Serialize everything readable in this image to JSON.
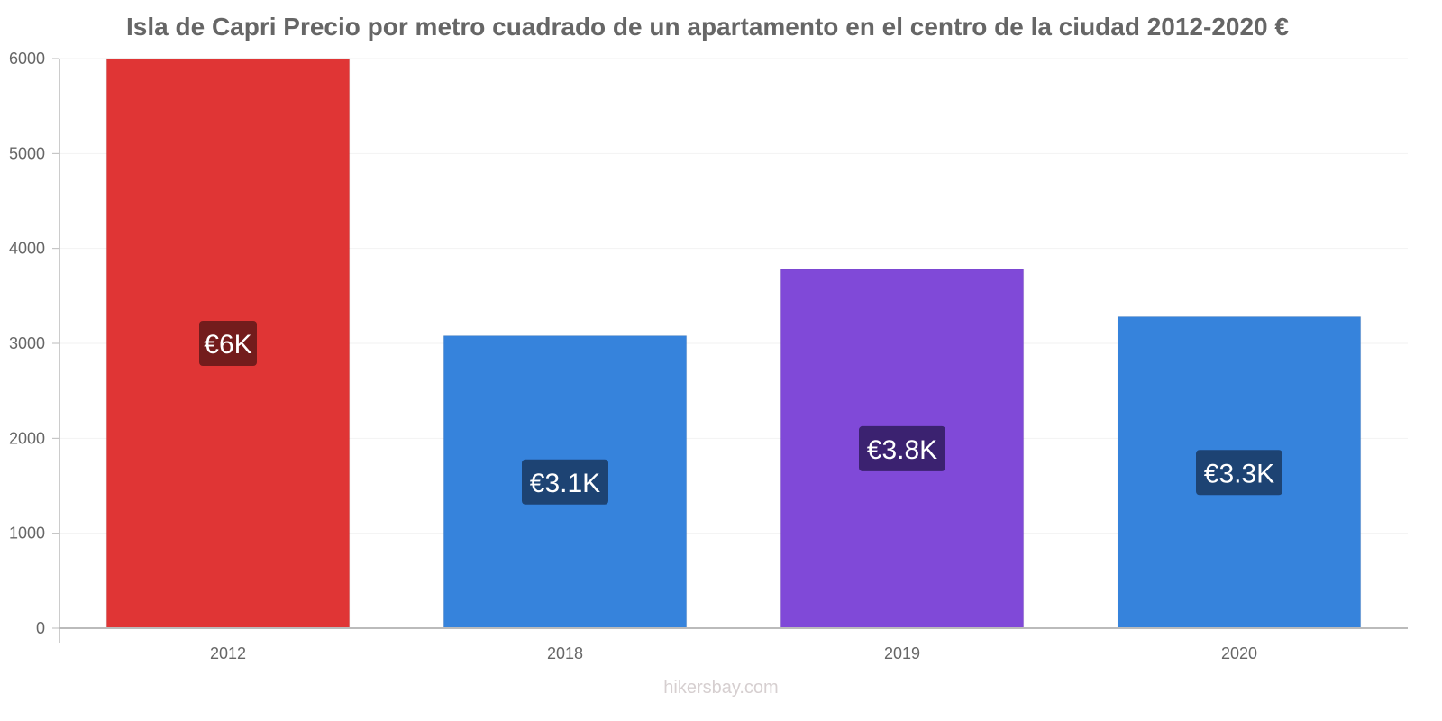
{
  "chart_data": {
    "type": "bar",
    "title": "Isla de Capri Precio por metro cuadrado de un apartamento en el centro de la ciudad 2012-2020 €",
    "xlabel": "",
    "ylabel": "",
    "categories": [
      "2012",
      "2018",
      "2019",
      "2020"
    ],
    "values": [
      6000,
      3080,
      3780,
      3280
    ],
    "data_labels": [
      "€6K",
      "€3.1K",
      "€3.8K",
      "€3.3K"
    ],
    "bar_colors": [
      "#e03535",
      "#3683dc",
      "#8049d8",
      "#3683dc"
    ],
    "label_bg_colors": [
      "#731c1c",
      "#1d4373",
      "#3b2270",
      "#1d4373"
    ],
    "ylim": [
      0,
      6000
    ],
    "yticks": [
      0,
      1000,
      2000,
      3000,
      4000,
      5000,
      6000
    ],
    "ytick_labels": [
      "0",
      "1000",
      "2000",
      "3000",
      "4000",
      "5000",
      "6000"
    ],
    "grid": true,
    "legend": "none"
  },
  "watermark": "hikersbay.com"
}
